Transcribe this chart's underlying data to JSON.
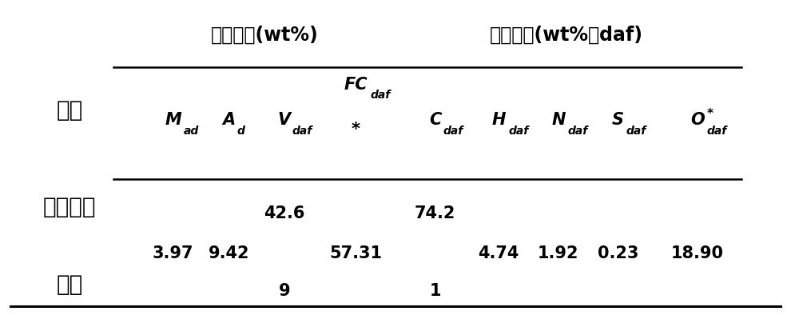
{
  "fig_width": 10.0,
  "fig_height": 3.94,
  "bg_color": "#ffffff",
  "top_header1_text": "工业分析(wt%)",
  "top_header2_text": "元素分析(wt%，daf)",
  "col_header1": "样品",
  "row_label_line1": "低变质不",
  "row_label_line2": "粘煤",
  "data_values": {
    "Mad": "3.97",
    "Ad": "9.42",
    "Vdaf_line1": "42.6",
    "Vdaf_line2": "9",
    "FCdaf": "57.31",
    "Cdaf_line1": "74.2",
    "Cdaf_line2": "1",
    "Hdaf": "4.74",
    "Ndaf": "1.92",
    "Sdaf": "0.23",
    "Odaf": "18.90"
  },
  "font_size_header": 17,
  "font_size_col": 15,
  "font_size_data": 15,
  "font_size_sample": 20,
  "font_size_sub": 10
}
